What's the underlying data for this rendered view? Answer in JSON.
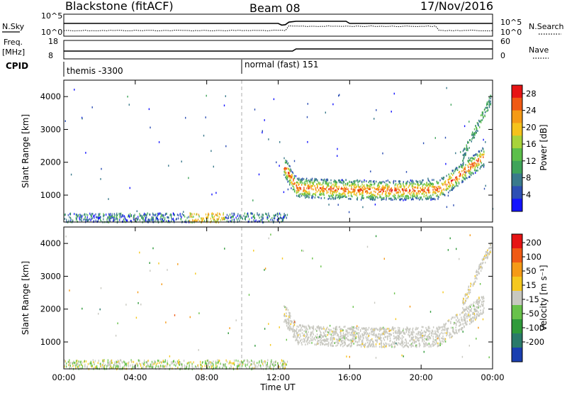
{
  "header": {
    "radar": "Blackstone (fitACF)",
    "beam": "Beam 08",
    "date": "17/Nov/2016"
  },
  "top_panels": {
    "nsky_label": "N.Sky",
    "nsearch_label": "N.Search",
    "noise_ticks": [
      "10^5",
      "10^0"
    ],
    "freq_label": "Freq.",
    "freq_unit": "[MHz]",
    "freq_ticks": [
      "18",
      "8"
    ],
    "nave_label": "Nave",
    "nave_ticks": [
      "60",
      "0"
    ],
    "cpid_label": "CPID",
    "cpid_segments": [
      {
        "name": "themis -3300",
        "start_hour": 0.0
      },
      {
        "name": "normal (fast) 151",
        "start_hour": 9.95
      }
    ]
  },
  "chart_data": [
    {
      "type": "heatmap",
      "panel": "power",
      "ylabel": "Slant Range [km]",
      "xlabel": "",
      "xlim": [
        0,
        24
      ],
      "ylim": [
        180,
        4500
      ],
      "yticks": [
        1000,
        2000,
        3000,
        4000
      ],
      "colorbar": {
        "label": "Power [dB]",
        "ticks": [
          4,
          8,
          12,
          16,
          20,
          24,
          28
        ],
        "range": [
          0,
          30
        ],
        "colors": [
          "#1414ff",
          "#2d4fb4",
          "#3a7a8c",
          "#3fa45a",
          "#5cbf4a",
          "#a8d33a",
          "#f5c21b",
          "#f59a16",
          "#f05a14",
          "#e61414"
        ]
      },
      "features": [
        {
          "name": "ground scatter band",
          "x_hours": [
            12.3,
            23.5
          ],
          "range_km": [
            1000,
            1700
          ],
          "power_db_peak": 30
        },
        {
          "name": "near-range echoes",
          "x_hours": [
            0,
            12
          ],
          "range_km": [
            200,
            450
          ],
          "power_db_peak": 20
        },
        {
          "name": "late high-range echoes",
          "x_hours": [
            22.5,
            24
          ],
          "range_km": [
            2200,
            4300
          ],
          "power_db_peak": 12
        }
      ]
    },
    {
      "type": "heatmap",
      "panel": "velocity",
      "ylabel": "Slant Range [km]",
      "xlabel": "Time UT",
      "xlim": [
        0,
        24
      ],
      "ylim": [
        180,
        4500
      ],
      "xticks": [
        "00:00",
        "04:00",
        "08:00",
        "12:00",
        "16:00",
        "20:00",
        "00:00"
      ],
      "yticks": [
        1000,
        2000,
        3000,
        4000
      ],
      "colorbar": {
        "label": "Velocity [m s⁻¹]",
        "ticks": [
          "200",
          "100",
          "50",
          "15",
          "-15",
          "-50",
          "-100",
          "-200"
        ],
        "range": [
          -250,
          250
        ],
        "colors": [
          "#1a3fb0",
          "#2a7a6a",
          "#2f9a3a",
          "#68c24a",
          "#c8c8c0",
          "#f5c81e",
          "#f59a16",
          "#f05a14",
          "#e61414"
        ]
      },
      "features": [
        {
          "name": "ground scatter (grey)",
          "x_hours": [
            12.3,
            23.5
          ],
          "range_km": [
            1000,
            1700
          ],
          "velocity": 0
        },
        {
          "name": "near-range echoes",
          "x_hours": [
            0,
            12
          ],
          "range_km": [
            200,
            450
          ],
          "velocity": -20
        }
      ]
    }
  ]
}
